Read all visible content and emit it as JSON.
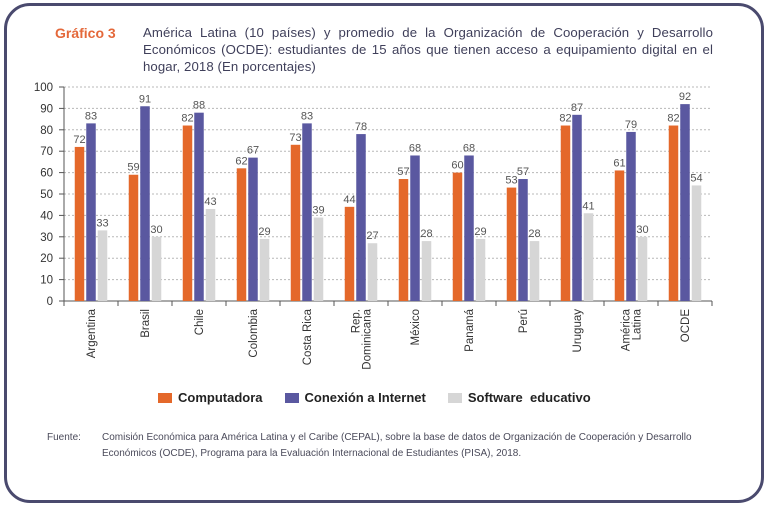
{
  "header": {
    "figure_label": "Gráfico 3",
    "title": "América Latina (10 países) y promedio de la Organización de Cooperación y Desarrollo Económicos (OCDE): estudiantes de 15 años que tienen acceso a equipamiento digital en el hogar, 2018 (En porcentajes)"
  },
  "chart_data": {
    "type": "bar",
    "categories": [
      [
        "Argentina"
      ],
      [
        "Brasil"
      ],
      [
        "Chile"
      ],
      [
        "Colombia"
      ],
      [
        "Costa Rica"
      ],
      [
        "Rep.",
        "Dominicana"
      ],
      [
        "México"
      ],
      [
        "Panamá"
      ],
      [
        "Perú"
      ],
      [
        "Uruguay"
      ],
      [
        "América",
        "Latina"
      ],
      [
        "OCDE"
      ]
    ],
    "series": [
      {
        "name": "Computadora",
        "color": "#e4682a",
        "values": [
          72,
          59,
          82,
          62,
          73,
          44,
          57,
          60,
          53,
          82,
          61,
          82
        ]
      },
      {
        "name": "Conexión a Internet",
        "color": "#5a58a0",
        "values": [
          83,
          91,
          88,
          67,
          83,
          78,
          68,
          68,
          57,
          87,
          79,
          92
        ]
      },
      {
        "name": "Software  educativo",
        "color": "#d6d6d6",
        "values": [
          33,
          30,
          43,
          29,
          39,
          27,
          28,
          29,
          28,
          41,
          30,
          54
        ]
      }
    ],
    "yticks": [
      0,
      10,
      20,
      30,
      40,
      50,
      60,
      70,
      80,
      90,
      100
    ],
    "ylim": [
      0,
      100
    ],
    "grid": true,
    "legend_position": "bottom"
  },
  "source": {
    "label": "Fuente:",
    "text": "Comisión Económica para América Latina y el Caribe (CEPAL), sobre la base de datos de Organización de Cooperación y Desarrollo Económicos (OCDE), Programa para la Evaluación Internacional de Estudiantes (PISA), 2018."
  }
}
